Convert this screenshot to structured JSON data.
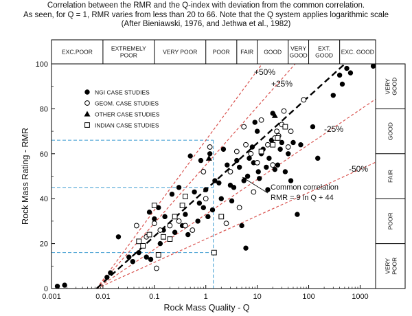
{
  "title_lines": [
    "Correlation between the RMR and the Q-index with deviation from the common correlation.",
    "As seen, for Q = 1, RMR varies from less than 20 to 66. Note that the Q system applies logarithmic scale",
    "(After Bieniawski, 1976, and Jethwa et al., 1982)"
  ],
  "chart_data": {
    "type": "scatter",
    "x_scale": "log",
    "xlim": [
      0.001,
      2000
    ],
    "ylim": [
      0,
      100
    ],
    "xlabel": "Rock Mass Quality - Q",
    "ylabel": "Rock Mass Rating - RMR",
    "x_tick_labels": [
      "0.001",
      "0.01",
      "0.1",
      "1",
      "10",
      "100",
      "1000"
    ],
    "x_tick_values": [
      0.001,
      0.01,
      0.1,
      1,
      10,
      100,
      1000
    ],
    "y_tick_labels": [
      "0",
      "20",
      "40",
      "60",
      "80",
      "100"
    ],
    "y_tick_values": [
      0,
      20,
      40,
      60,
      80,
      100
    ],
    "q_classes": [
      {
        "label": "EXC.POOR",
        "from": 0.001,
        "to": 0.01
      },
      {
        "label": "EXTREMELY POOR",
        "from": 0.01,
        "to": 0.1
      },
      {
        "label": "VERY POOR",
        "from": 0.1,
        "to": 1
      },
      {
        "label": "POOR",
        "from": 1,
        "to": 4
      },
      {
        "label": "FAIR",
        "from": 4,
        "to": 10
      },
      {
        "label": "GOOD",
        "from": 10,
        "to": 40
      },
      {
        "label": "VERY GOOD",
        "from": 40,
        "to": 100
      },
      {
        "label": "EXT. GOOD",
        "from": 100,
        "to": 400
      },
      {
        "label": "EXC. GOOD",
        "from": 400,
        "to": 2000
      }
    ],
    "rmr_classes": [
      {
        "label": "VERY POOR",
        "from": 0,
        "to": 20
      },
      {
        "label": "POOR",
        "from": 20,
        "to": 40
      },
      {
        "label": "FAIR",
        "from": 40,
        "to": 60
      },
      {
        "label": "GOOD",
        "from": 60,
        "to": 80
      },
      {
        "label": "VERY GOOD",
        "from": 80,
        "to": 100
      }
    ],
    "legend": [
      {
        "label": "NGI CASE STUDIES",
        "marker": "filled-circle"
      },
      {
        "label": "GEOM. CASE STUDIES",
        "marker": "open-circle"
      },
      {
        "label": "OTHER CASE STUDIES",
        "marker": "filled-triangle"
      },
      {
        "label": "INDIAN CASE STUDIES",
        "marker": "open-square"
      }
    ],
    "correlation": {
      "label1": "Common correlation",
      "label2": "RMR = 9 ln Q + 44",
      "slope": 9,
      "intercept": 44
    },
    "deviation_lines": [
      {
        "label": "+50%",
        "factor": 1.5
      },
      {
        "label": "+25%",
        "factor": 1.25
      },
      {
        "label": "-25%",
        "factor": 0.75
      },
      {
        "label": "-50%",
        "factor": 0.5
      }
    ],
    "reference_q": 1.4,
    "reference_rmr": [
      16,
      45,
      66
    ],
    "series": [
      {
        "name": "NGI CASE STUDIES",
        "marker": "filled-circle",
        "points": [
          [
            0.0013,
            1
          ],
          [
            0.0018,
            1.5
          ],
          [
            0.012,
            5
          ],
          [
            0.014,
            7
          ],
          [
            0.02,
            23
          ],
          [
            0.032,
            14
          ],
          [
            0.038,
            12
          ],
          [
            0.05,
            16
          ],
          [
            0.07,
            14
          ],
          [
            0.08,
            34
          ],
          [
            0.085,
            13
          ],
          [
            0.1,
            31
          ],
          [
            0.12,
            36
          ],
          [
            0.13,
            20
          ],
          [
            0.15,
            26
          ],
          [
            0.16,
            32
          ],
          [
            0.2,
            22
          ],
          [
            0.22,
            42
          ],
          [
            0.25,
            25
          ],
          [
            0.3,
            45
          ],
          [
            0.35,
            28
          ],
          [
            0.4,
            33
          ],
          [
            0.45,
            24
          ],
          [
            0.5,
            59
          ],
          [
            0.6,
            43
          ],
          [
            0.7,
            30
          ],
          [
            0.75,
            38
          ],
          [
            0.8,
            57
          ],
          [
            0.9,
            36
          ],
          [
            1.0,
            44
          ],
          [
            1.1,
            32
          ],
          [
            1.2,
            60
          ],
          [
            1.35,
            35
          ],
          [
            1.5,
            48
          ],
          [
            1.8,
            47
          ],
          [
            2.0,
            40
          ],
          [
            2.2,
            62
          ],
          [
            2.6,
            55
          ],
          [
            3.0,
            46
          ],
          [
            3.2,
            39
          ],
          [
            3.5,
            45
          ],
          [
            4.0,
            57
          ],
          [
            4.5,
            54
          ],
          [
            5.0,
            28
          ],
          [
            5.5,
            48
          ],
          [
            6.0,
            18
          ],
          [
            6.5,
            50
          ],
          [
            7.0,
            58
          ],
          [
            8.0,
            63
          ],
          [
            8.5,
            56
          ],
          [
            9.0,
            74
          ],
          [
            10,
            70
          ],
          [
            10.5,
            52
          ],
          [
            11,
            49
          ],
          [
            12,
            60
          ],
          [
            13,
            62
          ],
          [
            15,
            54
          ],
          [
            16,
            44
          ],
          [
            17,
            58
          ],
          [
            19,
            66
          ],
          [
            20,
            78
          ],
          [
            22,
            53
          ],
          [
            25,
            55
          ],
          [
            28,
            62
          ],
          [
            30,
            65
          ],
          [
            35,
            52
          ],
          [
            40,
            60
          ],
          [
            45,
            48
          ],
          [
            50,
            65
          ],
          [
            60,
            33
          ],
          [
            70,
            64
          ],
          [
            120,
            72
          ],
          [
            150,
            58
          ],
          [
            300,
            86
          ],
          [
            400,
            95
          ],
          [
            450,
            91
          ],
          [
            550,
            98
          ],
          [
            650,
            96
          ],
          [
            1800,
            99
          ]
        ]
      },
      {
        "name": "GEOM. CASE STUDIES",
        "marker": "open-circle",
        "points": [
          [
            0.045,
            28
          ],
          [
            0.07,
            23
          ],
          [
            0.1,
            29
          ],
          [
            0.11,
            9
          ],
          [
            0.13,
            26
          ],
          [
            0.2,
            28
          ],
          [
            0.3,
            30
          ],
          [
            0.4,
            28
          ],
          [
            0.55,
            26
          ],
          [
            0.9,
            52
          ],
          [
            1.0,
            40
          ],
          [
            1.2,
            63
          ],
          [
            2.5,
            29
          ],
          [
            3.0,
            52
          ],
          [
            4.0,
            61
          ],
          [
            4.5,
            36
          ],
          [
            5.5,
            72
          ],
          [
            6.0,
            64
          ],
          [
            7.5,
            60
          ],
          [
            8.5,
            43
          ],
          [
            10,
            56
          ],
          [
            12,
            75
          ],
          [
            16,
            64
          ],
          [
            20,
            55
          ],
          [
            22,
            67
          ],
          [
            24,
            70
          ],
          [
            26,
            68
          ],
          [
            30,
            73
          ],
          [
            33,
            79
          ],
          [
            40,
            63
          ],
          [
            45,
            70
          ],
          [
            80,
            84
          ]
        ]
      },
      {
        "name": "OTHER CASE STUDIES",
        "marker": "filled-triangle",
        "points": [
          [
            1.15,
            58
          ],
          [
            22,
            77
          ]
        ]
      },
      {
        "name": "INDIAN CASE STUDIES",
        "marker": "open-square",
        "points": [
          [
            0.05,
            21
          ],
          [
            0.06,
            19
          ],
          [
            0.08,
            24
          ],
          [
            0.1,
            37
          ],
          [
            0.12,
            15
          ],
          [
            0.15,
            23
          ],
          [
            0.2,
            22
          ],
          [
            0.25,
            32
          ],
          [
            0.35,
            37
          ],
          [
            0.4,
            41
          ],
          [
            1.45,
            16
          ],
          [
            2.0,
            32
          ],
          [
            12,
            61
          ],
          [
            20,
            64
          ],
          [
            25,
            67
          ],
          [
            35,
            72
          ]
        ]
      }
    ]
  }
}
